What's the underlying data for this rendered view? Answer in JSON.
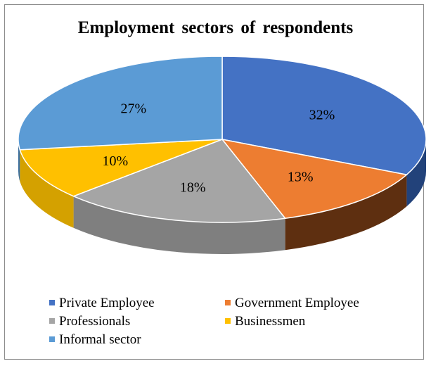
{
  "chart_data": {
    "type": "pie",
    "style": "3d",
    "title": "Employment  sectors of respondents",
    "slices": [
      {
        "label": "Private Employee",
        "value": 32,
        "display": "32%",
        "color": "#4472c4",
        "side_color": "#22427a"
      },
      {
        "label": "Government Employee",
        "value": 13,
        "display": "13%",
        "color": "#ed7d31",
        "side_color": "#5e2f10"
      },
      {
        "label": "Professionals",
        "value": 18,
        "display": "18%",
        "color": "#a5a5a5",
        "side_color": "#7f7f7f"
      },
      {
        "label": "Businessmen",
        "value": 10,
        "display": "10%",
        "color": "#ffc000",
        "side_color": "#d4a100"
      },
      {
        "label": "Informal sector",
        "value": 27,
        "display": "27%",
        "color": "#5b9bd5",
        "side_color": "#3a6e9e"
      }
    ],
    "legend_position": "bottom"
  }
}
